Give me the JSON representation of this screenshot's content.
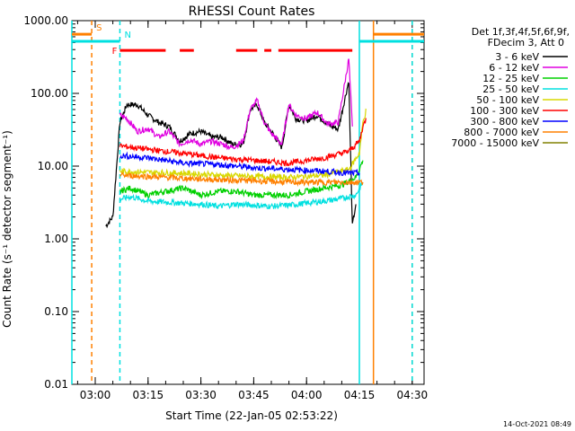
{
  "chart_data": {
    "type": "line",
    "title": "RHESSI Count Rates",
    "xlabel": "Start Time (22-Jan-05 02:53:22)",
    "ylabel": "Count Rate (s⁻¹ detector segment⁻¹)",
    "y_scale": "log",
    "ylim": [
      0.01,
      1000
    ],
    "xlim": [
      "02:53:22",
      "04:33:22"
    ],
    "x_ticks": [
      "03:00",
      "03:15",
      "03:30",
      "03:45",
      "04:00",
      "04:15",
      "04:30"
    ],
    "y_ticks": [
      "0.01",
      "0.10",
      "1.00",
      "10.00",
      "100.00",
      "1000.00"
    ],
    "legend": {
      "placement": "right",
      "header": [
        "Det 1f,3f,4f,5f,6f,9f,",
        "FDecim 3, Att 0"
      ]
    },
    "series": [
      {
        "name": "3 - 6 keV",
        "color": "#000000",
        "x": [
          "03:03",
          "03:05",
          "03:07",
          "03:09",
          "03:12",
          "03:15",
          "03:18",
          "03:21",
          "03:24",
          "03:27",
          "03:30",
          "03:33",
          "03:36",
          "03:39",
          "03:42",
          "03:44",
          "03:46",
          "03:48",
          "03:50",
          "03:53",
          "03:55",
          "03:57",
          "04:00",
          "04:03",
          "04:06",
          "04:09",
          "04:12",
          "04:13",
          "04:14"
        ],
        "y": [
          1.5,
          2.0,
          40,
          70,
          70,
          50,
          40,
          35,
          22,
          28,
          30,
          25,
          25,
          20,
          20,
          60,
          70,
          40,
          30,
          18,
          70,
          45,
          42,
          50,
          38,
          32,
          150,
          1.5,
          3.0
        ]
      },
      {
        "name": "6 - 12 keV",
        "color": "#e000e0",
        "x": [
          "03:07",
          "03:09",
          "03:12",
          "03:15",
          "03:18",
          "03:21",
          "03:24",
          "03:27",
          "03:30",
          "03:33",
          "03:36",
          "03:39",
          "03:42",
          "03:44",
          "03:46",
          "03:48",
          "03:50",
          "03:53",
          "03:55",
          "03:57",
          "04:00",
          "04:03",
          "04:06",
          "04:09",
          "04:12",
          "04:13"
        ],
        "y": [
          50,
          45,
          30,
          33,
          25,
          30,
          20,
          23,
          20,
          22,
          20,
          18,
          22,
          60,
          80,
          40,
          28,
          20,
          70,
          50,
          45,
          55,
          38,
          40,
          300,
          35
        ]
      },
      {
        "name": "12 - 25 keV",
        "color": "#00d000",
        "x": [
          "03:07",
          "03:10",
          "03:15",
          "03:20",
          "03:25",
          "03:30",
          "03:35",
          "03:40",
          "03:45",
          "03:50",
          "03:55",
          "04:00",
          "04:05",
          "04:10",
          "04:14",
          "04:16"
        ],
        "y": [
          4.5,
          5.0,
          4.0,
          4.5,
          5.0,
          4.0,
          4.5,
          4.5,
          4.0,
          4.0,
          4.0,
          4.5,
          5.0,
          5.5,
          7.0,
          12
        ]
      },
      {
        "name": "25 - 50 keV",
        "color": "#00e0e0",
        "x": [
          "03:07",
          "03:10",
          "03:15",
          "03:20",
          "03:25",
          "03:30",
          "03:35",
          "03:40",
          "03:45",
          "03:50",
          "03:55",
          "04:00",
          "04:05",
          "04:10",
          "04:14",
          "04:16"
        ],
        "y": [
          3.5,
          3.8,
          3.3,
          3.2,
          3.1,
          3.0,
          2.8,
          3.0,
          2.9,
          2.8,
          2.9,
          3.1,
          3.3,
          3.6,
          4.0,
          6.0
        ]
      },
      {
        "name": "50 - 100 keV",
        "color": "#d8d800",
        "x": [
          "03:07",
          "03:15",
          "03:25",
          "03:35",
          "03:45",
          "03:55",
          "04:05",
          "04:12",
          "04:15",
          "04:16",
          "04:17"
        ],
        "y": [
          8.5,
          8.2,
          8.0,
          7.5,
          7.2,
          7.0,
          7.5,
          9.0,
          15,
          40,
          60
        ]
      },
      {
        "name": "100 - 300 keV",
        "color": "#ff0000",
        "x": [
          "03:07",
          "03:15",
          "03:25",
          "03:35",
          "03:45",
          "03:55",
          "04:05",
          "04:12",
          "04:15",
          "04:16",
          "04:17"
        ],
        "y": [
          19,
          17,
          15,
          13,
          12,
          11,
          13,
          16,
          22,
          35,
          45
        ]
      },
      {
        "name": "300 - 800 keV",
        "color": "#0000ff",
        "x": [
          "03:07",
          "03:15",
          "03:25",
          "03:35",
          "03:45",
          "03:55",
          "04:05",
          "04:12",
          "04:15"
        ],
        "y": [
          14,
          13,
          11,
          10.5,
          9.5,
          9.0,
          8.5,
          8.0,
          8.0
        ]
      },
      {
        "name": "800 - 7000 keV",
        "color": "#ff8000",
        "x": [
          "03:07",
          "03:15",
          "03:25",
          "03:35",
          "03:45",
          "03:55",
          "04:05",
          "04:12",
          "04:16"
        ],
        "y": [
          7.5,
          7.2,
          6.8,
          6.5,
          6.3,
          6.0,
          6.0,
          6.0,
          6.0
        ]
      },
      {
        "name": "7000 - 15000 keV",
        "color": "#808000",
        "x": [],
        "y": []
      }
    ],
    "markers": [
      {
        "label": "S",
        "color": "#ff8000",
        "x": "02:59",
        "y_level": 650,
        "x_from": "02:53:22",
        "x_to": "02:59"
      },
      {
        "label": "N",
        "color": "#00e0e0",
        "x": "03:07",
        "y_level": 520,
        "x_from": "02:53:22",
        "x_to": "03:07"
      },
      {
        "label": "F",
        "color": "#ff0000",
        "x": "03:07",
        "y_level": 390,
        "segments": [
          [
            "03:07",
            "03:20"
          ],
          [
            "03:24",
            "03:28"
          ],
          [
            "03:40",
            "03:46"
          ],
          [
            "03:48",
            "03:50"
          ],
          [
            "03:52",
            "04:13"
          ]
        ]
      }
    ],
    "vertical_lines": [
      {
        "name": "orange-dash-left",
        "x": "02:59",
        "color": "#ff8000",
        "dashed": true
      },
      {
        "name": "cyan-dash-left",
        "x": "03:07",
        "color": "#00e0e0",
        "dashed": true
      },
      {
        "name": "cyan-solid-left",
        "x": "02:53:22",
        "color": "#00e0e0",
        "dashed": false
      },
      {
        "name": "cyan-solid-right",
        "x": "04:15",
        "color": "#00e0e0",
        "dashed": false
      },
      {
        "name": "orange-solid-right",
        "x": "04:19",
        "color": "#ff8000",
        "dashed": false
      },
      {
        "name": "orange-dash-right",
        "x": "04:30",
        "color": "#ff8000",
        "dashed": true
      },
      {
        "name": "cyan-dash-right",
        "x": "04:30",
        "color": "#00e0e0",
        "dashed": true
      }
    ],
    "right_bars": [
      {
        "color": "#00e0e0",
        "y_level": 520,
        "x_from": "04:15",
        "x_to": "04:33:22"
      },
      {
        "color": "#ff8000",
        "y_level": 650,
        "x_from": "04:19",
        "x_to": "04:33:22"
      }
    ]
  },
  "footer": {
    "timestamp": "14-Oct-2021 08:49"
  }
}
